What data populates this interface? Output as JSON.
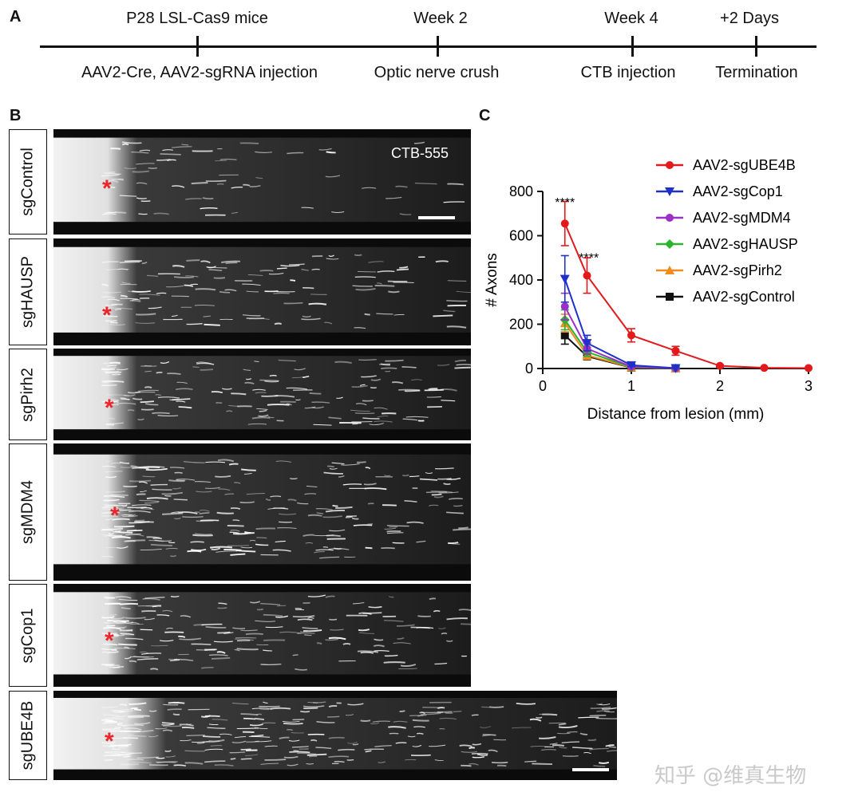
{
  "panels": {
    "a": "A",
    "b": "B",
    "c": "C"
  },
  "timeline": {
    "events": [
      {
        "top": "P28 LSL-Cas9 mice",
        "bottom": "AAV2-Cre, AAV2-sgRNA injection"
      },
      {
        "top": "Week 2",
        "bottom": "Optic nerve crush"
      },
      {
        "top": "Week 4",
        "bottom": "CTB injection"
      },
      {
        "top": "+2 Days",
        "bottom": "Termination"
      }
    ]
  },
  "micrographs": {
    "stain_label": "CTB-555",
    "rows": [
      "sgControl",
      "sgHAUSP",
      "sgPirh2",
      "sgMDM4",
      "sgCop1",
      "sgUBE4B"
    ],
    "lesion_marker": "*",
    "colors": {
      "marker": "#e8262c",
      "background": "#0b0b0b",
      "signal": "#ffffff"
    }
  },
  "chart_data": {
    "type": "line",
    "title": "",
    "xlabel": "Distance from lesion (mm)",
    "ylabel": "# Axons",
    "xlim": [
      0,
      3
    ],
    "ylim": [
      0,
      800
    ],
    "xticks": [
      0,
      1,
      2,
      3
    ],
    "yticks": [
      0,
      200,
      400,
      600,
      800
    ],
    "legend": "top-right",
    "annotations": [
      {
        "text": "****",
        "x": 0.25,
        "y": 760
      },
      {
        "text": "****",
        "x": 0.52,
        "y": 510
      }
    ],
    "series": [
      {
        "name": "AAV2-sgUBE4B",
        "color": "#e31a1c",
        "marker": "circle",
        "x": [
          0.25,
          0.5,
          1.0,
          1.5,
          2.0,
          2.5,
          3.0
        ],
        "y": [
          655,
          420,
          150,
          80,
          12,
          3,
          2
        ],
        "err": [
          100,
          80,
          30,
          20,
          5,
          2,
          1
        ]
      },
      {
        "name": "AAV2-sgCop1",
        "color": "#2030c8",
        "marker": "triangle-down",
        "x": [
          0.25,
          0.5,
          1.0,
          1.5
        ],
        "y": [
          405,
          115,
          15,
          2
        ],
        "err": [
          105,
          35,
          6,
          1
        ]
      },
      {
        "name": "AAV2-sgMDM4",
        "color": "#9b2fc6",
        "marker": "circle",
        "x": [
          0.25,
          0.5,
          1.0,
          1.5
        ],
        "y": [
          280,
          90,
          8,
          1
        ],
        "err": [
          60,
          25,
          4,
          1
        ]
      },
      {
        "name": "AAV2-sgHAUSP",
        "color": "#2ab52a",
        "marker": "diamond",
        "x": [
          0.25,
          0.5,
          1.0,
          1.5
        ],
        "y": [
          220,
          75,
          6,
          1
        ],
        "err": [
          45,
          20,
          3,
          1
        ]
      },
      {
        "name": "AAV2-sgPirh2",
        "color": "#f08c1e",
        "marker": "triangle-up",
        "x": [
          0.25,
          0.5,
          1.0,
          1.5
        ],
        "y": [
          205,
          60,
          5,
          1
        ],
        "err": [
          40,
          18,
          3,
          1
        ]
      },
      {
        "name": "AAV2-sgControl",
        "color": "#111111",
        "marker": "square",
        "x": [
          0.25,
          0.5,
          1.0,
          1.5
        ],
        "y": [
          150,
          55,
          4,
          1
        ],
        "err": [
          40,
          15,
          2,
          1
        ]
      }
    ]
  },
  "watermark": "知乎 @维真生物"
}
